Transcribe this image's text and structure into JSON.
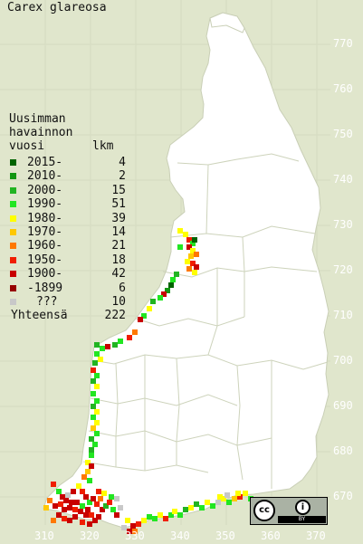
{
  "map": {
    "species": "Carex glareosa",
    "background_color": "#e0e6cc",
    "land_color": "#ffffff",
    "grid_color": "#dfe5cb",
    "border_color": "#c9cfb6"
  },
  "axes": {
    "y_ticks": [
      "770",
      "760",
      "750",
      "740",
      "730",
      "720",
      "710",
      "700",
      "690",
      "680",
      "670"
    ],
    "x_ticks": [
      "310",
      "320",
      "330",
      "340",
      "350",
      "360",
      "370"
    ]
  },
  "legend": {
    "heading_line1": "Uusimman",
    "heading_line2": "havainnon",
    "heading_line3_left": "vuosi",
    "heading_line3_right": "lkm",
    "entries": [
      {
        "label": "2015-",
        "count": "4",
        "color": "#006400"
      },
      {
        "label": "2010-",
        "count": "2",
        "color": "#129612"
      },
      {
        "label": "2000-",
        "count": "15",
        "color": "#22b422"
      },
      {
        "label": "1990-",
        "count": "51",
        "color": "#22e622"
      },
      {
        "label": "1980-",
        "count": "39",
        "color": "#ffff00"
      },
      {
        "label": "1970-",
        "count": "14",
        "color": "#ffc800"
      },
      {
        "label": "1960-",
        "count": "21",
        "color": "#ff7800"
      },
      {
        "label": "1950-",
        "count": "18",
        "color": "#f01e00"
      },
      {
        "label": "1900-",
        "count": "42",
        "color": "#c80000"
      },
      {
        "label": "-1899",
        "count": "6",
        "color": "#960000"
      },
      {
        "label": "???",
        "count": "10",
        "color": "#c8c8c8"
      }
    ],
    "total_label": "Yhteensä",
    "total_count": "222"
  },
  "license": {
    "cc_text": "cc",
    "by_text": "BY",
    "person_icon": "person-icon"
  }
}
